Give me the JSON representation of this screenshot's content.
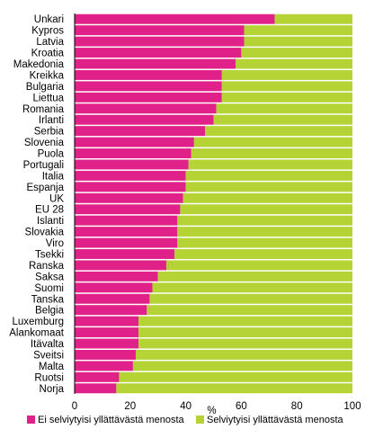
{
  "chart_data": {
    "type": "bar",
    "orientation": "horizontal",
    "stacked": true,
    "xlabel": "%",
    "xlim": [
      0,
      100
    ],
    "xticks": [
      0,
      20,
      40,
      60,
      80,
      100
    ],
    "grid": false,
    "legend_position": "bottom",
    "categories": [
      "Unkari",
      "Kypros",
      "Latvia",
      "Kroatia",
      "Makedonia",
      "Kreikka",
      "Bulgaria",
      "Liettua",
      "Romania",
      "Irlanti",
      "Serbia",
      "Slovenia",
      "Puola",
      "Portugali",
      "Italia",
      "Espanja",
      "UK",
      "EU 28",
      "Islanti",
      "Slovakia",
      "Viro",
      "Tsekki",
      "Ranska",
      "Saksa",
      "Suomi",
      "Tanska",
      "Belgia",
      "Luxemburg",
      "Alankomaat",
      "Itävalta",
      "Sveitsi",
      "Malta",
      "Ruotsi",
      "Norja"
    ],
    "series": [
      {
        "name": "Ei selviytyisi yllättävästä menosta",
        "color": "#e0218a",
        "values": [
          72,
          61,
          61,
          60,
          58,
          53,
          53,
          53,
          51,
          50,
          47,
          43,
          42,
          41,
          40,
          40,
          39,
          38,
          37,
          37,
          37,
          36,
          33,
          30,
          28,
          27,
          26,
          23,
          23,
          23,
          22,
          21,
          16,
          15
        ]
      },
      {
        "name": "Selviytyisi yllättävästä menosta",
        "color": "#b5d334",
        "values": [
          28,
          39,
          39,
          40,
          42,
          47,
          47,
          47,
          49,
          50,
          53,
          57,
          58,
          59,
          60,
          60,
          61,
          62,
          63,
          63,
          63,
          64,
          67,
          70,
          72,
          73,
          74,
          77,
          77,
          77,
          78,
          79,
          84,
          85
        ]
      }
    ]
  }
}
